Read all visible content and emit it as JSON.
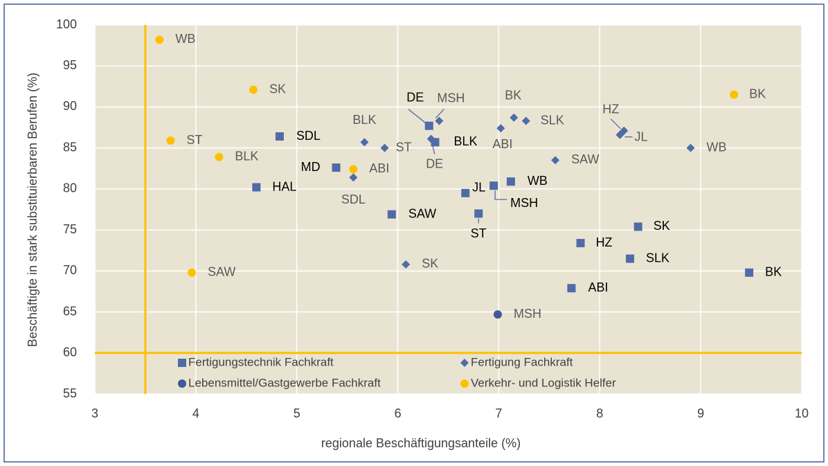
{
  "chart_data": {
    "type": "scatter",
    "x_label": "regionale Beschäftigungsanteile (%)",
    "y_label": "Beschäftigte in stark substituierbaren Berufen (%)",
    "xlim": [
      3,
      10
    ],
    "xticks": [
      3,
      4,
      5,
      6,
      7,
      8,
      9,
      10
    ],
    "ylim": [
      55,
      100
    ],
    "yticks": [
      55,
      60,
      65,
      70,
      75,
      80,
      85,
      90,
      95,
      100
    ],
    "grid": true,
    "reference_lines": {
      "x": 3.5,
      "y": 60,
      "color": "#FFC000"
    },
    "series": [
      {
        "name": "Fertigungstechnik Fachkraft",
        "color": "#4F6BA8",
        "marker": "square",
        "label_color": "#000000",
        "labels": [
          "DE",
          "BLK",
          "SDL",
          "MD",
          "HAL",
          "SAW",
          "JL",
          "MSH",
          "WB",
          "ST",
          "SK",
          "HZ",
          "SLK",
          "ABI",
          "BK"
        ],
        "x": [
          6.31,
          6.37,
          4.83,
          5.39,
          4.6,
          5.94,
          6.67,
          6.95,
          7.12,
          6.8,
          8.38,
          7.81,
          8.3,
          7.72,
          9.48
        ],
        "values": [
          87.7,
          85.7,
          86.4,
          82.6,
          80.2,
          76.9,
          79.5,
          80.4,
          80.9,
          77.0,
          75.4,
          73.4,
          71.5,
          67.9,
          69.8
        ]
      },
      {
        "name": "Fertigung Fachkraft",
        "color": "#4F6BA8",
        "marker": "diamond",
        "label_color": "#595959",
        "labels": [
          "MSH",
          "DE",
          "BK",
          "SLK",
          "ABI",
          "HZ",
          "JL",
          "BLK",
          "ST",
          "WB",
          "SAW",
          "SDL",
          "SK"
        ],
        "x": [
          6.41,
          6.33,
          7.15,
          7.27,
          7.02,
          8.24,
          8.2,
          5.67,
          5.87,
          8.9,
          7.56,
          5.56,
          6.08
        ],
        "values": [
          88.3,
          86.1,
          88.7,
          88.3,
          87.4,
          87.1,
          86.6,
          85.7,
          85.0,
          85.0,
          83.5,
          81.4,
          70.8
        ]
      },
      {
        "name": "Lebensmittel/Gastgewerbe Fachkraft",
        "color": "#3F5A98",
        "marker": "circle",
        "label_color": "#595959",
        "labels": [
          "MSH"
        ],
        "x": [
          6.99
        ],
        "values": [
          64.7
        ]
      },
      {
        "name": "Verkehr- und Logistik Helfer",
        "color": "#FFC000",
        "marker": "circle",
        "label_color": "#595959",
        "labels": [
          "WB",
          "SK",
          "ST",
          "BLK",
          "ABI",
          "SAW",
          "BK"
        ],
        "x": [
          3.64,
          4.57,
          3.75,
          4.23,
          5.56,
          3.96,
          9.33
        ],
        "values": [
          98.2,
          92.1,
          85.9,
          83.9,
          82.4,
          69.8,
          91.5
        ]
      }
    ]
  }
}
